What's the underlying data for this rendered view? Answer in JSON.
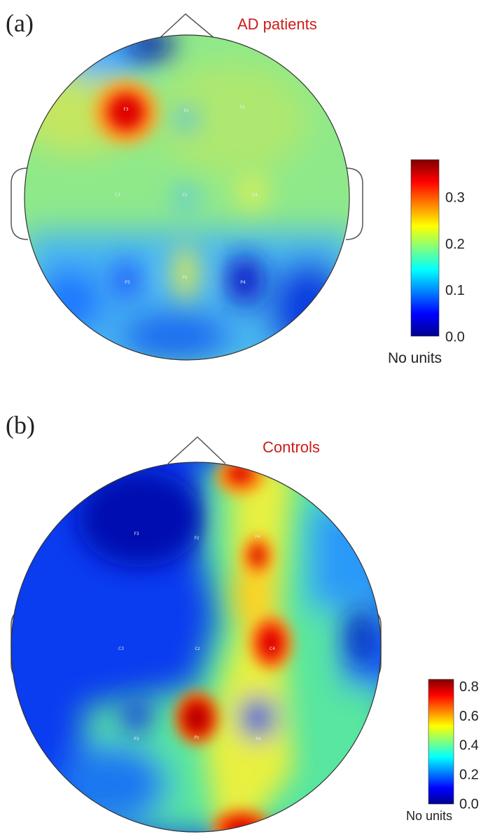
{
  "chart_data": [
    {
      "type": "heatmap",
      "panel_label": "(a)",
      "title": "AD patients",
      "colorbar": {
        "ticks": [
          "0.0",
          "0.1",
          "0.2",
          "0.3"
        ],
        "tick_values": [
          0.0,
          0.1,
          0.2,
          0.3
        ],
        "range": [
          0.0,
          0.38
        ],
        "units_label": "No units"
      },
      "electrodes": [
        {
          "name": "F3",
          "value": 0.36
        },
        {
          "name": "Fz",
          "value": 0.15
        },
        {
          "name": "F4",
          "value": 0.2
        },
        {
          "name": "C3",
          "value": 0.18
        },
        {
          "name": "Cz",
          "value": 0.12
        },
        {
          "name": "C4",
          "value": 0.24
        },
        {
          "name": "P3",
          "value": 0.07
        },
        {
          "name": "Pz",
          "value": 0.25
        },
        {
          "name": "P4",
          "value": 0.05
        }
      ]
    },
    {
      "type": "heatmap",
      "panel_label": "(b)",
      "title": "Controls",
      "colorbar": {
        "ticks": [
          "0.0",
          "0.2",
          "0.4",
          "0.6",
          "0.8"
        ],
        "tick_values": [
          0.0,
          0.2,
          0.4,
          0.6,
          0.8
        ],
        "range": [
          0.0,
          0.85
        ],
        "units_label": "No units"
      },
      "electrodes": [
        {
          "name": "F3",
          "value": 0.05
        },
        {
          "name": "Fz",
          "value": 0.05
        },
        {
          "name": "F4",
          "value": 0.7
        },
        {
          "name": "C3",
          "value": 0.05
        },
        {
          "name": "Cz",
          "value": 0.05
        },
        {
          "name": "C4",
          "value": 0.75
        },
        {
          "name": "P3",
          "value": 0.12
        },
        {
          "name": "Pz",
          "value": 0.82
        },
        {
          "name": "P4",
          "value": 0.12
        }
      ]
    }
  ]
}
